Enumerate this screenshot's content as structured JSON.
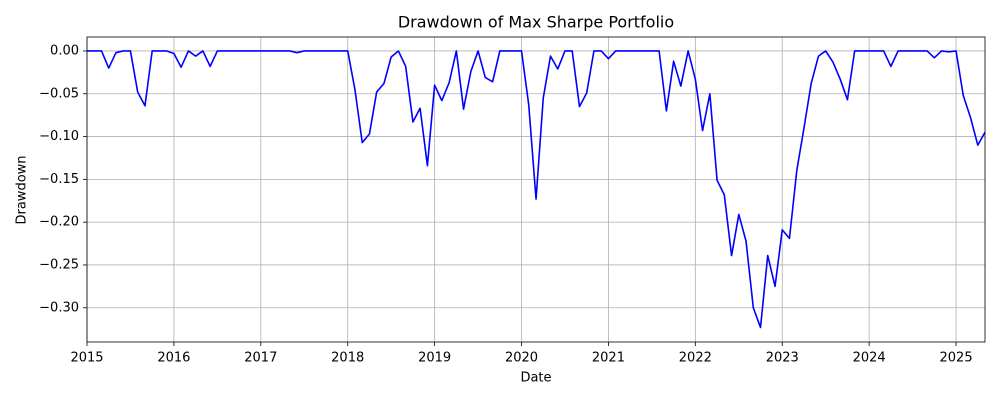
{
  "chart_data": {
    "type": "line",
    "title": "Drawdown of Max Sharpe Portfolio",
    "x_label": "Date",
    "y_label": "Drawdown",
    "x": [
      2015,
      2015.083,
      2015.167,
      2015.25,
      2015.333,
      2015.417,
      2015.5,
      2015.583,
      2015.667,
      2015.75,
      2015.833,
      2015.917,
      2016,
      2016.083,
      2016.167,
      2016.25,
      2016.333,
      2016.417,
      2016.5,
      2016.583,
      2016.667,
      2016.75,
      2016.833,
      2016.917,
      2017,
      2017.083,
      2017.167,
      2017.25,
      2017.333,
      2017.417,
      2017.5,
      2017.583,
      2017.667,
      2017.75,
      2017.833,
      2017.917,
      2018,
      2018.083,
      2018.167,
      2018.25,
      2018.333,
      2018.417,
      2018.5,
      2018.583,
      2018.667,
      2018.75,
      2018.833,
      2018.917,
      2019,
      2019.083,
      2019.167,
      2019.25,
      2019.333,
      2019.417,
      2019.5,
      2019.583,
      2019.667,
      2019.75,
      2019.833,
      2019.917,
      2020,
      2020.083,
      2020.167,
      2020.25,
      2020.333,
      2020.417,
      2020.5,
      2020.583,
      2020.667,
      2020.75,
      2020.833,
      2020.917,
      2021,
      2021.083,
      2021.167,
      2021.25,
      2021.333,
      2021.417,
      2021.5,
      2021.583,
      2021.667,
      2021.75,
      2021.833,
      2021.917,
      2022,
      2022.083,
      2022.167,
      2022.25,
      2022.333,
      2022.417,
      2022.5,
      2022.583,
      2022.667,
      2022.75,
      2022.833,
      2022.917,
      2023,
      2023.083,
      2023.167,
      2023.25,
      2023.333,
      2023.417,
      2023.5,
      2023.583,
      2023.667,
      2023.75,
      2023.833,
      2023.917,
      2024,
      2024.083,
      2024.167,
      2024.25,
      2024.333,
      2024.417,
      2024.5,
      2024.583,
      2024.667,
      2024.75,
      2024.833,
      2024.917,
      2025,
      2025.083,
      2025.167,
      2025.25,
      2025.333
    ],
    "series": [
      {
        "name": "Drawdown",
        "color": "#0000ff",
        "values": [
          0,
          0,
          0,
          -0.02,
          -0.002,
          0,
          0,
          -0.048,
          -0.064,
          0,
          0,
          0,
          -0.003,
          -0.019,
          0,
          -0.006,
          0,
          -0.018,
          0,
          0,
          0,
          0,
          0,
          0,
          0,
          0,
          0,
          0,
          0,
          -0.002,
          0,
          0,
          0,
          0,
          0,
          0,
          0,
          -0.045,
          -0.107,
          -0.097,
          -0.048,
          -0.038,
          -0.007,
          0,
          -0.018,
          -0.083,
          -0.067,
          -0.134,
          -0.04,
          -0.058,
          -0.037,
          0,
          -0.068,
          -0.024,
          0,
          -0.031,
          -0.036,
          0,
          0,
          0,
          0,
          -0.063,
          -0.173,
          -0.055,
          -0.006,
          -0.021,
          0,
          0,
          -0.065,
          -0.049,
          0,
          0,
          -0.009,
          0,
          0,
          0,
          0,
          0,
          0,
          0,
          -0.07,
          -0.012,
          -0.041,
          0,
          -0.033,
          -0.093,
          -0.05,
          -0.151,
          -0.168,
          -0.239,
          -0.191,
          -0.222,
          -0.3,
          -0.323,
          -0.239,
          -0.275,
          -0.209,
          -0.219,
          -0.14,
          -0.09,
          -0.038,
          -0.006,
          0,
          -0.013,
          -0.033,
          -0.057,
          0,
          0,
          0,
          0,
          0,
          -0.018,
          0,
          0,
          0,
          0,
          0,
          -0.008,
          0,
          -0.001,
          0,
          -0.052,
          -0.078,
          -0.11,
          -0.095
        ]
      }
    ],
    "xlim": [
      2015,
      2025.333
    ],
    "xticks": [
      2015,
      2016,
      2017,
      2018,
      2019,
      2020,
      2021,
      2022,
      2023,
      2024,
      2025
    ],
    "ylim": [
      -0.34,
      0.0163
    ],
    "yticks": [
      {
        "value": 0,
        "label": "0.00"
      },
      {
        "value": -0.05,
        "label": "−0.05"
      },
      {
        "value": -0.1,
        "label": "−0.10"
      },
      {
        "value": -0.15,
        "label": "−0.15"
      },
      {
        "value": -0.2,
        "label": "−0.20"
      },
      {
        "value": -0.25,
        "label": "−0.25"
      },
      {
        "value": -0.3,
        "label": "−0.30"
      }
    ],
    "grid": true
  }
}
